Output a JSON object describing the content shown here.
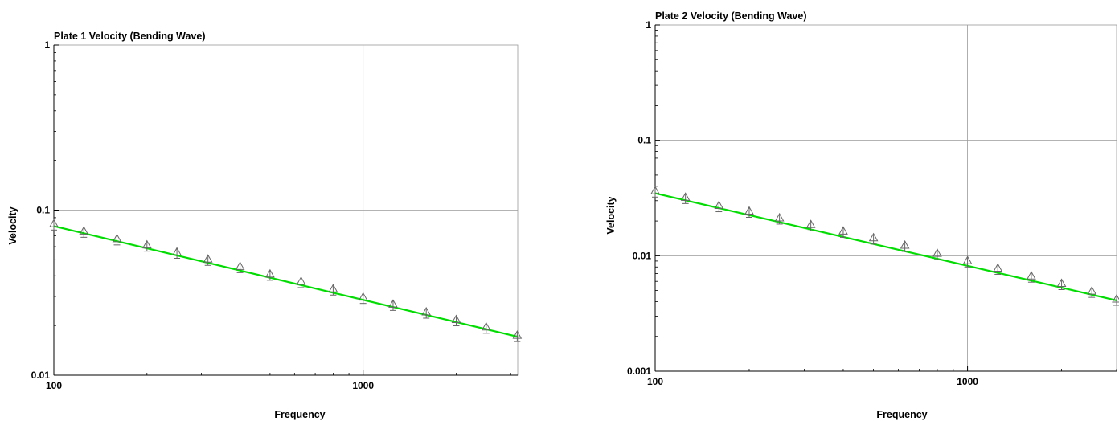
{
  "chart_data": [
    {
      "type": "line",
      "title": "Plate 1 Velocity (Bending Wave)",
      "xlabel": "Frequency",
      "ylabel": "Velocity",
      "xscale": "log",
      "yscale": "log",
      "xlim": [
        100,
        3162
      ],
      "ylim": [
        0.01,
        1
      ],
      "grid": true,
      "x_ticks": [
        {
          "value": 100,
          "label": "100"
        },
        {
          "value": 1000,
          "label": "1000"
        }
      ],
      "y_ticks": [
        {
          "value": 0.01,
          "label": "0.01"
        },
        {
          "value": 0.1,
          "label": "0.1"
        },
        {
          "value": 1,
          "label": "1"
        }
      ],
      "line_color": "#00dd00",
      "marker_color": "#666666",
      "series": [
        {
          "style": "line",
          "x": [
            100,
            3162
          ],
          "y": [
            0.08,
            0.0171
          ]
        },
        {
          "style": "triangle-markers",
          "x": [
            100,
            125,
            160,
            200,
            250,
            315,
            400,
            500,
            630,
            800,
            1000,
            1250,
            1600,
            2000,
            2500,
            3150
          ],
          "y": [
            0.081,
            0.0732,
            0.0658,
            0.0603,
            0.0546,
            0.0495,
            0.0447,
            0.0402,
            0.0363,
            0.0327,
            0.0291,
            0.0264,
            0.0237,
            0.0213,
            0.0192,
            0.0171
          ]
        }
      ]
    },
    {
      "type": "line",
      "title": "Plate 2 Velocity (Bending Wave)",
      "xlabel": "Frequency",
      "ylabel": "Velocity",
      "xscale": "log",
      "yscale": "log",
      "xlim": [
        100,
        3000
      ],
      "ylim": [
        0.001,
        1
      ],
      "grid": true,
      "x_ticks": [
        {
          "value": 100,
          "label": "100"
        },
        {
          "value": 1000,
          "label": "1000"
        }
      ],
      "y_ticks": [
        {
          "value": 0.001,
          "label": "0.001"
        },
        {
          "value": 0.01,
          "label": "0.01"
        },
        {
          "value": 0.1,
          "label": "0.1"
        },
        {
          "value": 1,
          "label": "1"
        }
      ],
      "line_color": "#00dd00",
      "marker_color": "#666666",
      "series": [
        {
          "style": "line",
          "x": [
            100,
            3000
          ],
          "y": [
            0.0348,
            0.0041
          ]
        },
        {
          "style": "triangle-markers",
          "x": [
            100,
            125,
            160,
            200,
            250,
            315,
            400,
            500,
            630,
            800,
            1000,
            1250,
            1600,
            2000,
            2500,
            3000
          ],
          "y": [
            0.0355,
            0.0312,
            0.0265,
            0.0237,
            0.0207,
            0.0181,
            0.0159,
            0.0139,
            0.012,
            0.0102,
            0.0088,
            0.0076,
            0.0065,
            0.0056,
            0.0048,
            0.0041
          ]
        }
      ]
    }
  ]
}
